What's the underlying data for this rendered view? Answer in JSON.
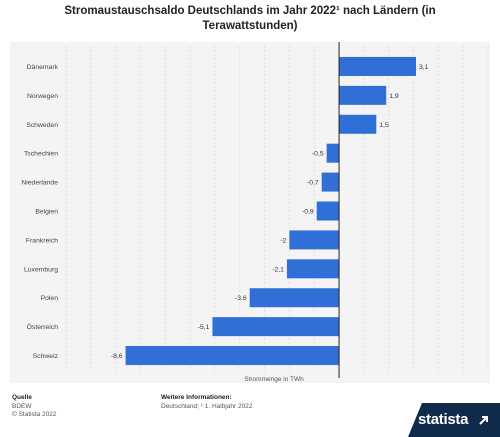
{
  "header": {
    "title_line1": "Stromaustauschsaldo Deutschlands im Jahr 2022¹ nach Ländern (in",
    "title_line2": "Terawattstunden)"
  },
  "chart_data": {
    "type": "bar",
    "orientation": "horizontal",
    "categories": [
      "Dänemark",
      "Norwegen",
      "Schweden",
      "Tschechien",
      "Niederlande",
      "Belgien",
      "Frankreich",
      "Luxemburg",
      "Polen",
      "Österreich",
      "Schweiz"
    ],
    "values": [
      3.1,
      1.9,
      1.5,
      -0.5,
      -0.7,
      -0.9,
      -2,
      -2.1,
      -3.6,
      -5.1,
      -8.6
    ],
    "value_labels": [
      "3,1",
      "1,9",
      "1,5",
      "-0,5",
      "-0,7",
      "-0,9",
      "-2",
      "-2,1",
      "-3,6",
      "-5,1",
      "-8,6"
    ],
    "xlabel": "Strommenge in TWh",
    "xlim": [
      -11,
      6
    ],
    "grid": true,
    "bar_color": "#2f6fd6"
  },
  "footer": {
    "source_heading": "Quelle",
    "source_name": "BDEW",
    "copyright": "© Statista 2022",
    "info_heading": "Weitere Informationen:",
    "info_text": "Deutschland; ¹ 1. Halbjahr 2022"
  },
  "brand": {
    "logo_text": "statista",
    "logo_color": "#0f2a4a"
  }
}
